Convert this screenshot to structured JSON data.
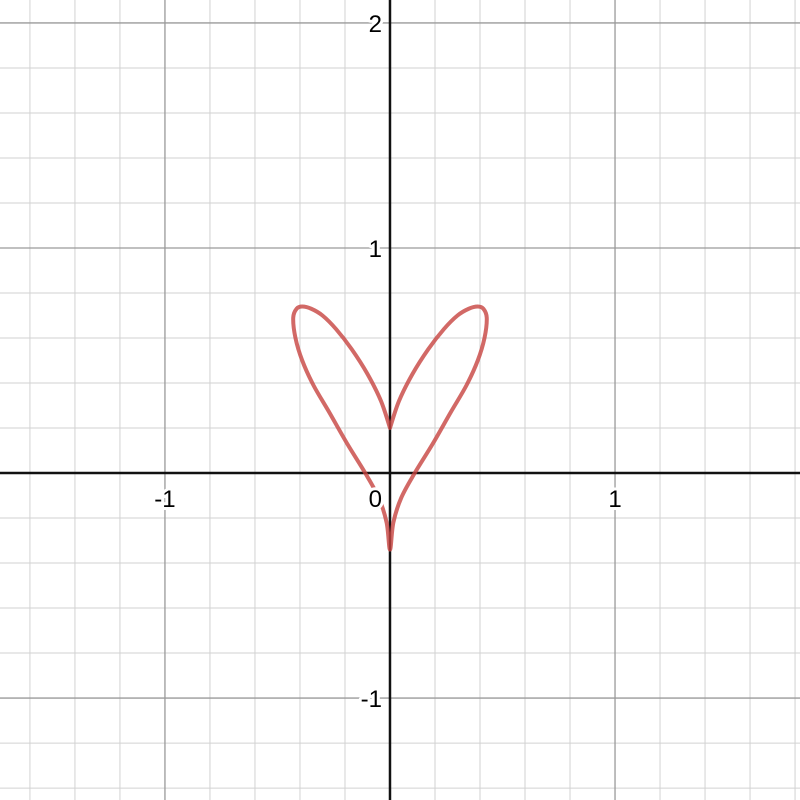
{
  "chart_data": {
    "type": "line",
    "title": "",
    "xlabel": "",
    "ylabel": "",
    "xlim": [
      -1.733,
      1.822
    ],
    "ylim": [
      -1.453,
      2.102
    ],
    "grid": true,
    "minor_step": 0.2,
    "major_step": 1,
    "x_ticks": [
      {
        "value": -1,
        "label": "-1"
      },
      {
        "value": 0,
        "label": "0"
      },
      {
        "value": 1,
        "label": "1"
      }
    ],
    "y_ticks": [
      {
        "value": -1,
        "label": "-1"
      },
      {
        "value": 1,
        "label": "1"
      },
      {
        "value": 2,
        "label": "2"
      }
    ],
    "series": [
      {
        "color": "#c74440",
        "points": [
          [
            0,
            0.2
          ],
          [
            0.04,
            0.32
          ],
          [
            0.1,
            0.44
          ],
          [
            0.17,
            0.55
          ],
          [
            0.24,
            0.64
          ],
          [
            0.3,
            0.7
          ],
          [
            0.35,
            0.73
          ],
          [
            0.39,
            0.74
          ],
          [
            0.415,
            0.73
          ],
          [
            0.43,
            0.69
          ],
          [
            0.42,
            0.6
          ],
          [
            0.39,
            0.5
          ],
          [
            0.34,
            0.39
          ],
          [
            0.27,
            0.27
          ],
          [
            0.19,
            0.13
          ],
          [
            0.11,
            0.0
          ],
          [
            0.05,
            -0.11
          ],
          [
            0.015,
            -0.22
          ],
          [
            0,
            -0.34
          ],
          [
            -0.015,
            -0.22
          ],
          [
            -0.05,
            -0.11
          ],
          [
            -0.11,
            0.0
          ],
          [
            -0.19,
            0.13
          ],
          [
            -0.27,
            0.27
          ],
          [
            -0.34,
            0.39
          ],
          [
            -0.39,
            0.5
          ],
          [
            -0.42,
            0.6
          ],
          [
            -0.43,
            0.69
          ],
          [
            -0.415,
            0.73
          ],
          [
            -0.39,
            0.74
          ],
          [
            -0.35,
            0.73
          ],
          [
            -0.3,
            0.7
          ],
          [
            -0.24,
            0.64
          ],
          [
            -0.17,
            0.55
          ],
          [
            -0.1,
            0.44
          ],
          [
            -0.04,
            0.32
          ],
          [
            0,
            0.2
          ]
        ]
      }
    ]
  }
}
